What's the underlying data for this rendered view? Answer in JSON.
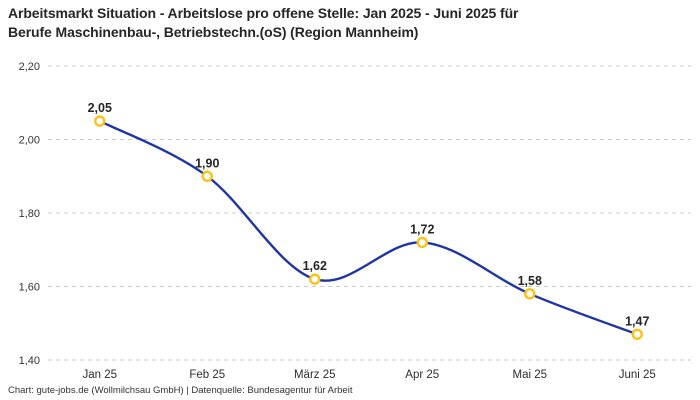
{
  "header": {
    "title_line1": "Arbeitsmarkt Situation - Arbeitslose pro offene Stelle: Jan 2025 - Juni 2025 für",
    "title_line2": "Berufe Maschinenbau-, Betriebstechn.(oS) (Region Mannheim)"
  },
  "chart_data": {
    "type": "line",
    "title": "Arbeitsmarkt Situation - Arbeitslose pro offene Stelle: Jan 2025 - Juni 2025 für Berufe Maschinenbau-, Betriebstechn.(oS) (Region Mannheim)",
    "categories": [
      "Jan 25",
      "Feb 25",
      "März 25",
      "Apr 25",
      "Mai 25",
      "Juni 25"
    ],
    "values": [
      2.05,
      1.9,
      1.62,
      1.72,
      1.58,
      1.47
    ],
    "value_labels": [
      "2,05",
      "1,90",
      "1,62",
      "1,72",
      "1,58",
      "1,47"
    ],
    "ylim": [
      1.4,
      2.2
    ],
    "yticks": [
      2.2,
      2.0,
      1.8,
      1.6,
      1.4
    ],
    "ytick_labels": [
      "2,20",
      "2,00",
      "1,80",
      "1,60",
      "1,40"
    ],
    "xlabel": "",
    "ylabel": "",
    "grid": "horizontal-dashed",
    "legend": "none",
    "curve": "smooth",
    "colors": {
      "line": "#1f35a5",
      "marker_ring": "#fcc117",
      "marker_fill": "#ffffff",
      "gridline": "#cbcbcb",
      "text": "#262626"
    }
  },
  "footer": {
    "text": "Chart: gute-jobs.de (Wollmilchsau GmbH) | Datenquelle: Bundesagentur für Arbeit"
  }
}
